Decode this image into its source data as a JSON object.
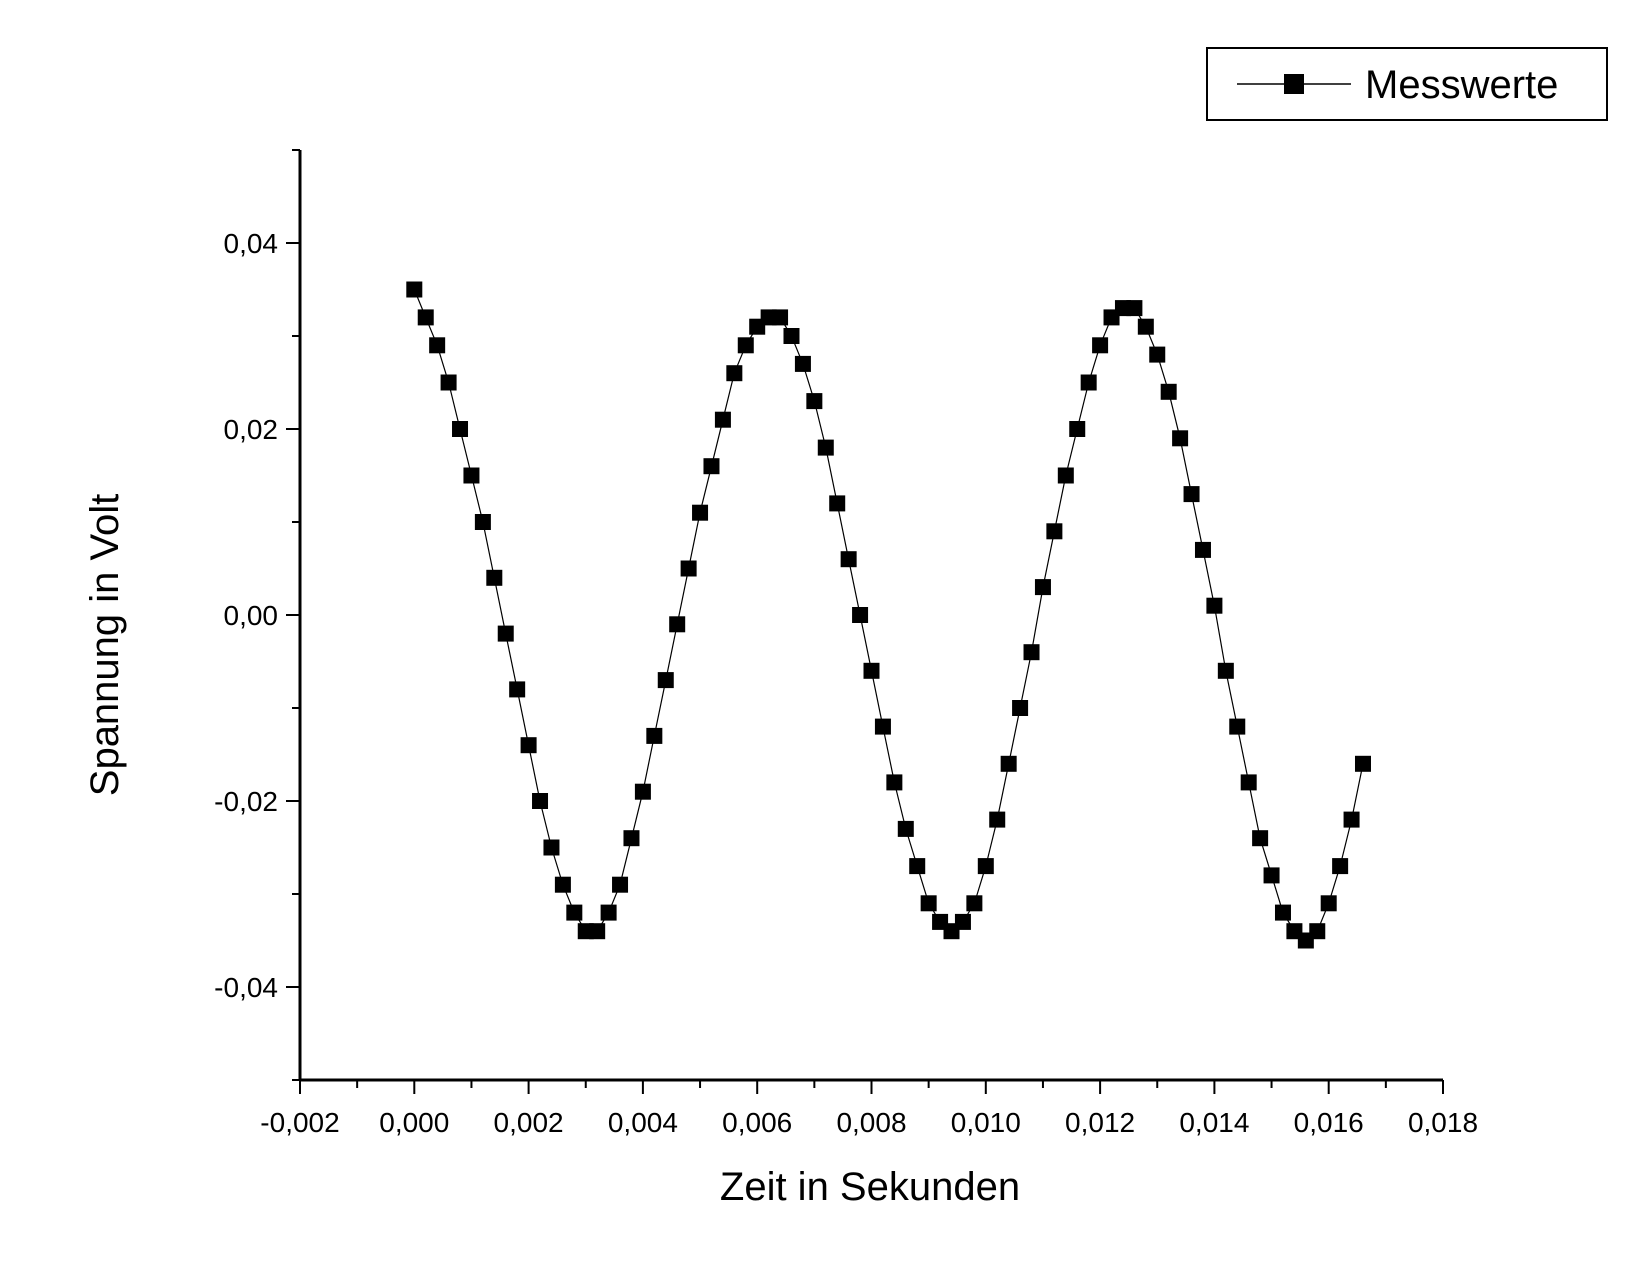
{
  "chart_data": {
    "type": "scatter",
    "xlabel": "Zeit in Sekunden",
    "ylabel": "Spannung in Volt",
    "xlim": [
      -0.002,
      0.018
    ],
    "ylim": [
      -0.05,
      0.05
    ],
    "x_ticks": [
      -0.002,
      0.0,
      0.002,
      0.004,
      0.006,
      0.008,
      0.01,
      0.012,
      0.014,
      0.016,
      0.018
    ],
    "x_tick_labels": [
      "-0,002",
      "0,000",
      "0,002",
      "0,004",
      "0,006",
      "0,008",
      "0,010",
      "0,012",
      "0,014",
      "0,016",
      "0,018"
    ],
    "y_ticks": [
      -0.04,
      -0.02,
      0.0,
      0.02,
      0.04
    ],
    "y_tick_labels": [
      "-0,04",
      "-0,02",
      "0,00",
      "0,02",
      "0,04"
    ],
    "grid": false,
    "legend_position": "top-right",
    "marker": "square",
    "line": "thin connecting line",
    "color": "#000000",
    "series": [
      {
        "name": "Messwerte",
        "x": [
          0.0,
          0.0002,
          0.0004,
          0.0006,
          0.0008,
          0.001,
          0.0012,
          0.0014,
          0.0016,
          0.0018,
          0.002,
          0.0022,
          0.0024,
          0.0026,
          0.0028,
          0.003,
          0.0032,
          0.0034,
          0.0036,
          0.0038,
          0.004,
          0.0042,
          0.0044,
          0.0046,
          0.0048,
          0.005,
          0.0052,
          0.0054,
          0.0056,
          0.0058,
          0.006,
          0.0062,
          0.0064,
          0.0066,
          0.0068,
          0.007,
          0.0072,
          0.0074,
          0.0076,
          0.0078,
          0.008,
          0.0082,
          0.0084,
          0.0086,
          0.0088,
          0.009,
          0.0092,
          0.0094,
          0.0096,
          0.0098,
          0.01,
          0.0102,
          0.0104,
          0.0106,
          0.0108,
          0.011,
          0.0112,
          0.0114,
          0.0116,
          0.0118,
          0.012,
          0.0122,
          0.0124,
          0.0126,
          0.0128,
          0.013,
          0.0132,
          0.0134,
          0.0136,
          0.0138,
          0.014,
          0.0142,
          0.0144,
          0.0146,
          0.0148,
          0.015,
          0.0152,
          0.0154,
          0.0156,
          0.0158,
          0.016,
          0.0162,
          0.0164,
          0.0166
        ],
        "y": [
          0.035,
          0.032,
          0.029,
          0.025,
          0.02,
          0.015,
          0.01,
          0.004,
          -0.002,
          -0.008,
          -0.014,
          -0.02,
          -0.025,
          -0.029,
          -0.032,
          -0.034,
          -0.034,
          -0.032,
          -0.029,
          -0.024,
          -0.019,
          -0.013,
          -0.007,
          -0.001,
          0.005,
          0.011,
          0.016,
          0.021,
          0.026,
          0.029,
          0.031,
          0.032,
          0.032,
          0.03,
          0.027,
          0.023,
          0.018,
          0.012,
          0.006,
          0.0,
          -0.006,
          -0.012,
          -0.018,
          -0.023,
          -0.027,
          -0.031,
          -0.033,
          -0.034,
          -0.033,
          -0.031,
          -0.027,
          -0.022,
          -0.016,
          -0.01,
          -0.004,
          0.003,
          0.009,
          0.015,
          0.02,
          0.025,
          0.029,
          0.032,
          0.033,
          0.033,
          0.031,
          0.028,
          0.024,
          0.019,
          0.013,
          0.007,
          0.001,
          -0.006,
          -0.012,
          -0.018,
          -0.024,
          -0.028,
          -0.032,
          -0.034,
          -0.035,
          -0.034,
          -0.031,
          -0.027,
          -0.022,
          -0.016
        ]
      }
    ]
  }
}
